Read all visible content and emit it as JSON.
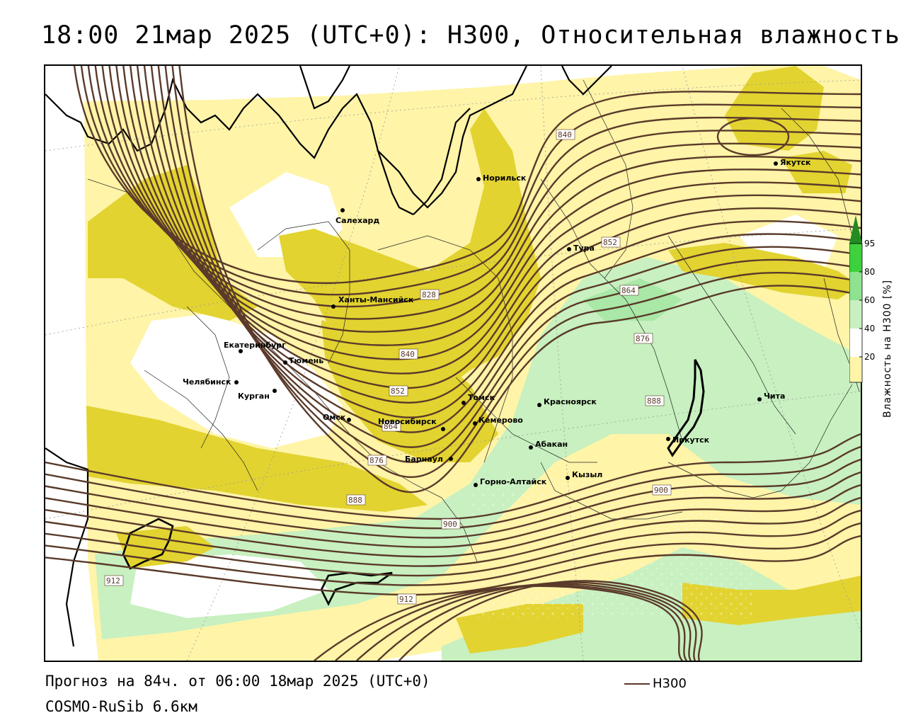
{
  "title": "18:00 21мар 2025 (UTC+0): H300, Относительная влажность",
  "footer": {
    "forecast": "Прогноз на 84ч. от 06:00 18мар 2025 (UTC+0)",
    "model": "COSMO-RuSib 6.6км",
    "key_label": "H300"
  },
  "legend": {
    "title": "Влажность на H300 [%]",
    "ticks": [
      "95",
      "80",
      "60",
      "40",
      "20"
    ],
    "colors": {
      "c95": "#228b22",
      "c80": "#3ed13e",
      "c70": "#8fe28f",
      "c60": "#c8f0c0",
      "c40": "#ffffff",
      "dry1": "#fff4a8",
      "dry2": "#e2d330"
    }
  },
  "colors": {
    "contour": "#5a3a2a",
    "border": "#000000",
    "admin": "#222222"
  },
  "cities": [
    {
      "name": "Салехард"
    },
    {
      "name": "Норильск"
    },
    {
      "name": "Якутск"
    },
    {
      "name": "Тура"
    },
    {
      "name": "Ханты-Мансийск"
    },
    {
      "name": "Екатеринбург"
    },
    {
      "name": "Тюмень"
    },
    {
      "name": "Челябинск"
    },
    {
      "name": "Курган"
    },
    {
      "name": "Омск"
    },
    {
      "name": "Новосибирск"
    },
    {
      "name": "Томск"
    },
    {
      "name": "Кемерово"
    },
    {
      "name": "Красноярск"
    },
    {
      "name": "Абакан"
    },
    {
      "name": "Барнаул"
    },
    {
      "name": "Горно-Алтайск"
    },
    {
      "name": "Кызыл"
    },
    {
      "name": "Иркутск"
    },
    {
      "name": "Чита"
    }
  ],
  "isolines": [
    "828",
    "840",
    "852",
    "864",
    "876",
    "888",
    "900",
    "912",
    "840",
    "852",
    "864",
    "876",
    "888",
    "900",
    "912"
  ]
}
